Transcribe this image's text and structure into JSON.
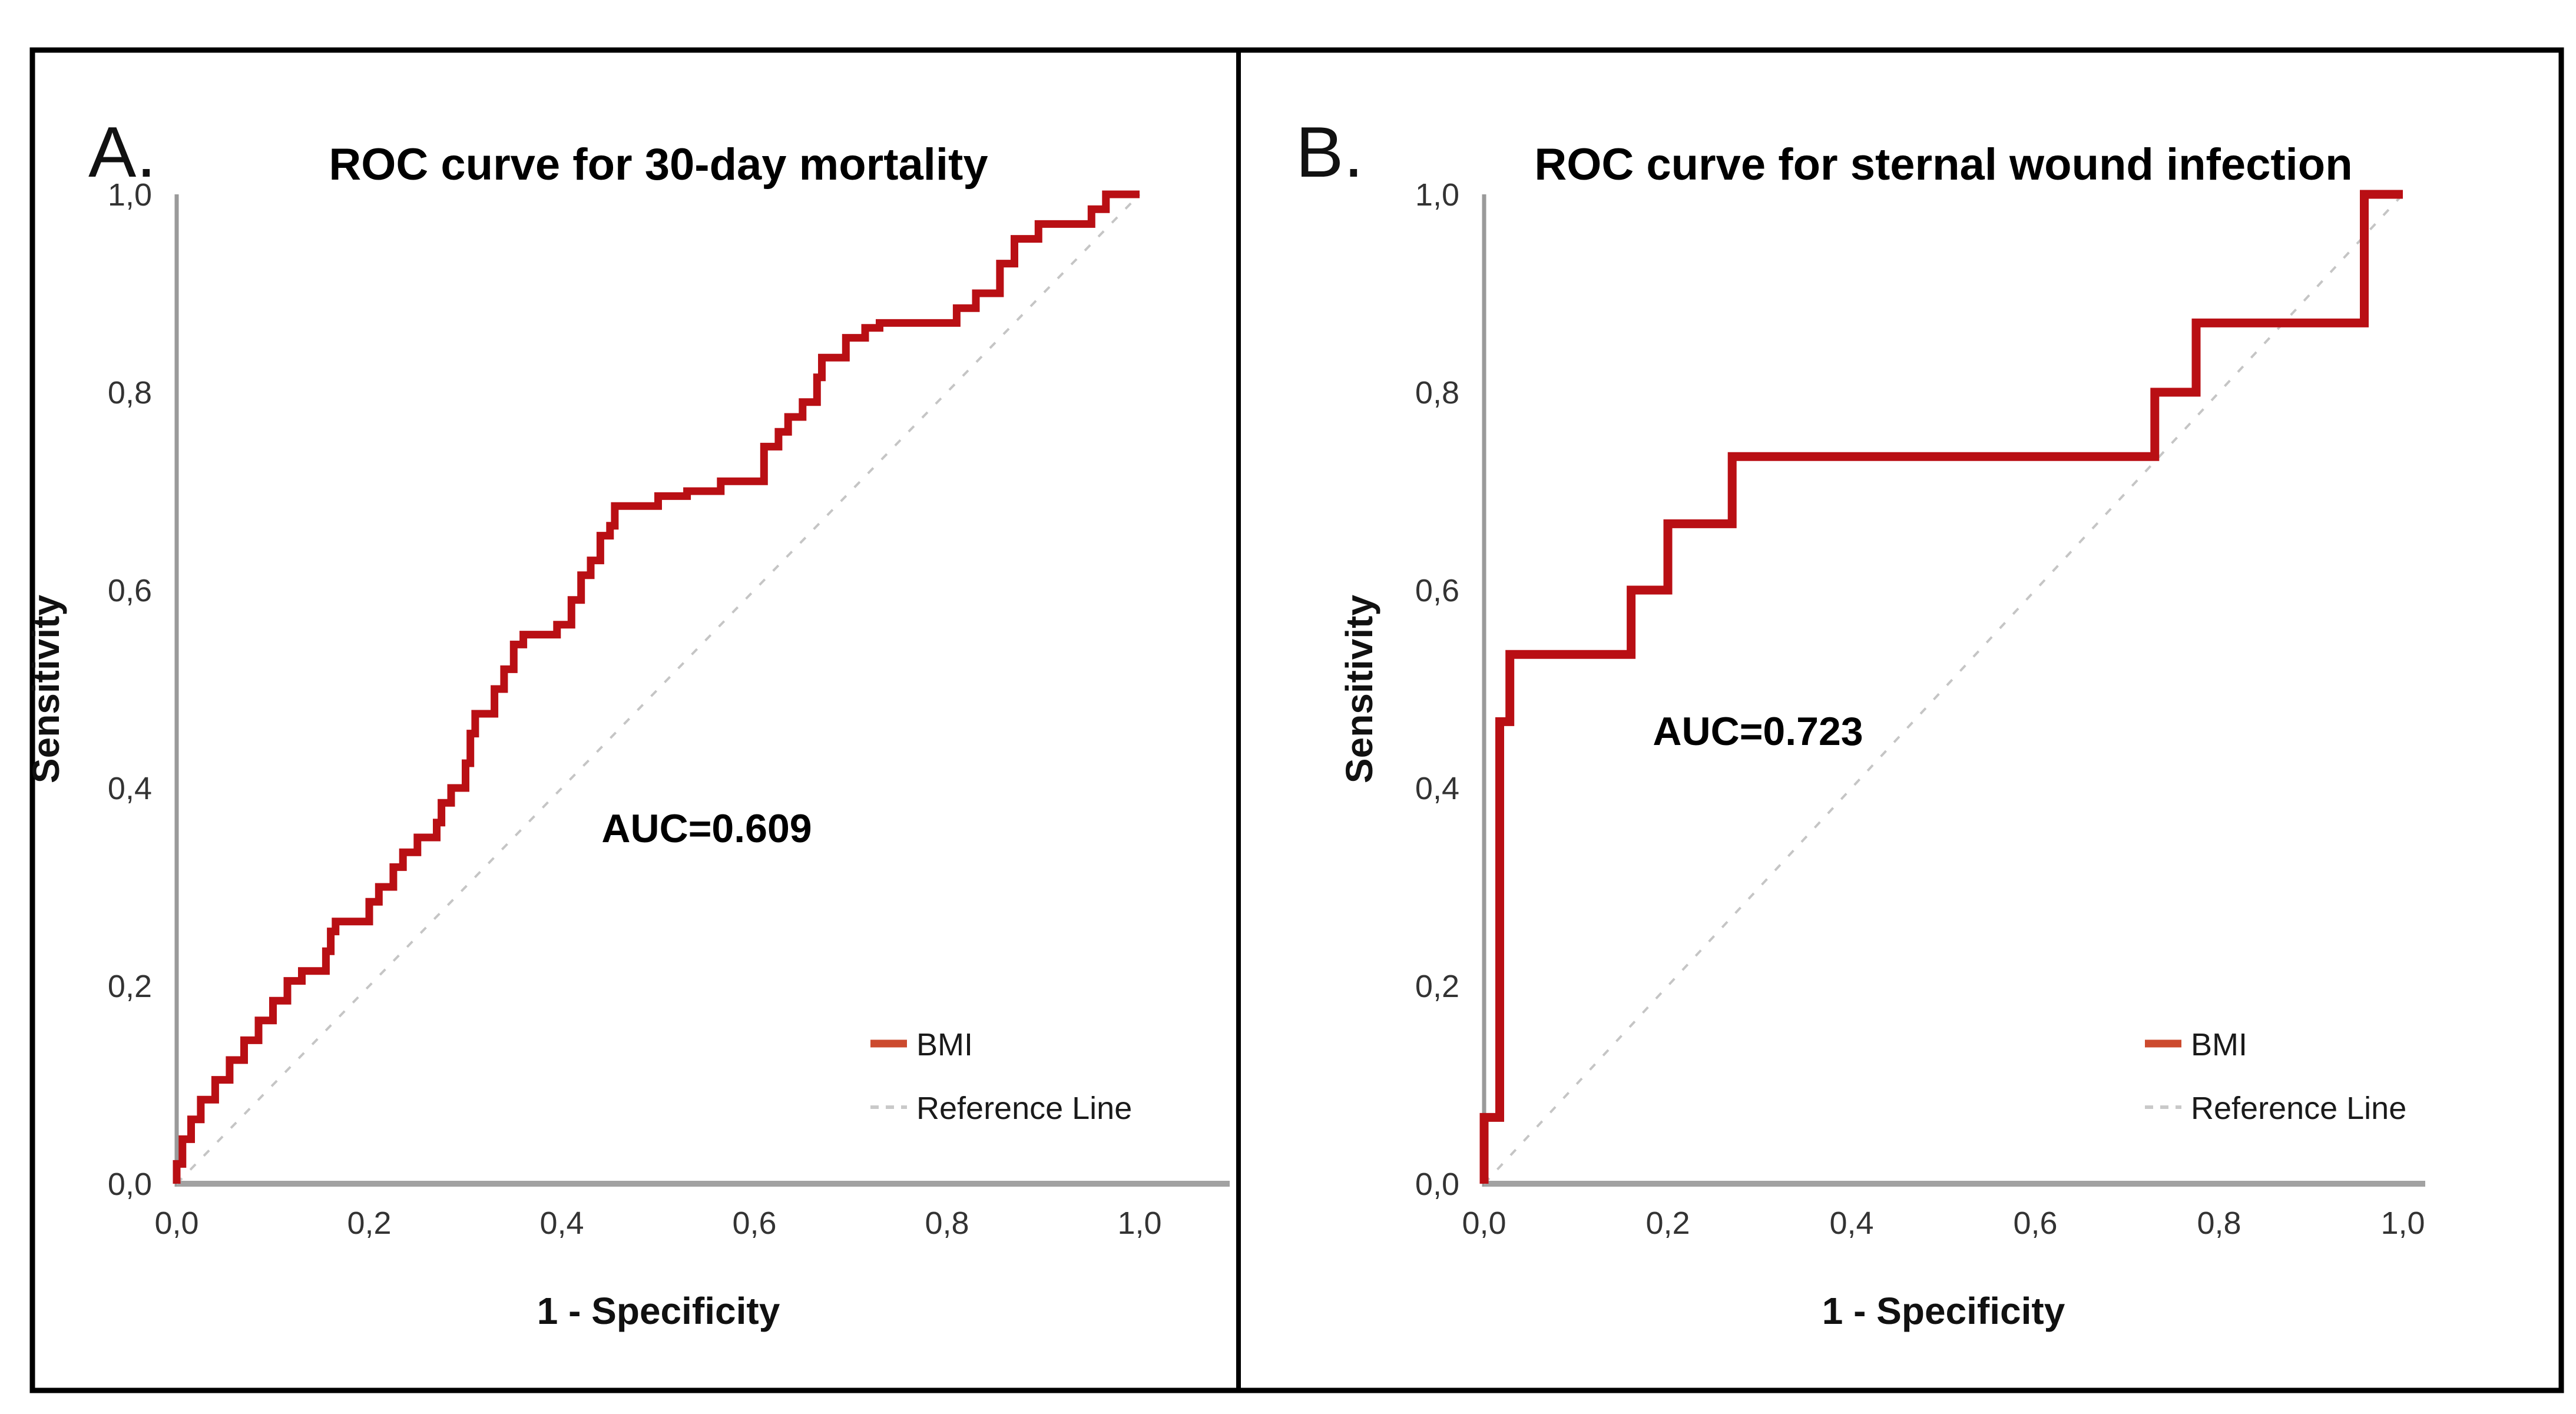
{
  "figure": {
    "kind": "two-panel ROC figure",
    "colors": {
      "curve": "#b90f14",
      "curve_halo": "#f2b8b5",
      "legend_marker_red": "#cc4a2e",
      "reference_line": "#c5c5c5",
      "x_axis": "#a2a2a2",
      "y_axis": "#9a9a9a",
      "border": "#000000",
      "tick_text": "#333333"
    },
    "panels": [
      {
        "panel_label": "A.",
        "title": "ROC curve for 30-day mortality",
        "x_axis_label": "1 - Specificity",
        "y_axis_label": "Sensitivity",
        "auc_label": "AUC=0.609",
        "x_tick_labels": [
          "0,0",
          "0,2",
          "0,4",
          "0,6",
          "0,8",
          "1,0"
        ],
        "y_tick_labels": [
          "0,0",
          "0,2",
          "0,4",
          "0,6",
          "0,8",
          "1,0"
        ],
        "legend": {
          "series_label": "BMI",
          "reference_label": "Reference Line"
        }
      },
      {
        "panel_label": "B.",
        "title": "ROC curve for sternal wound infection",
        "x_axis_label": "1 - Specificity",
        "y_axis_label": "Sensitivity",
        "auc_label": "AUC=0.723",
        "x_tick_labels": [
          "0,0",
          "0,2",
          "0,4",
          "0,6",
          "0,8",
          "1,0"
        ],
        "y_tick_labels": [
          "0,0",
          "0,2",
          "0,4",
          "0,6",
          "0,8",
          "1,0"
        ],
        "legend": {
          "series_label": "BMI",
          "reference_label": "Reference Line"
        }
      }
    ]
  },
  "chart_data": [
    {
      "type": "line",
      "subtype": "roc-step-curve",
      "title": "ROC curve for 30-day mortality",
      "xlabel": "1 - Specificity",
      "ylabel": "Sensitivity",
      "xlim": [
        0,
        1
      ],
      "ylim": [
        0,
        1
      ],
      "x_ticks": [
        0,
        0.2,
        0.4,
        0.6,
        0.8,
        1.0
      ],
      "y_ticks": [
        0,
        0.2,
        0.4,
        0.6,
        0.8,
        1.0
      ],
      "tick_label_format": "comma-decimal",
      "grid": false,
      "legend_position": "inside-lower-right",
      "annotation": "AUC=0.609",
      "auc": 0.609,
      "series": [
        {
          "name": "BMI",
          "style": "step",
          "color": "#b90f14",
          "points": [
            [
              0,
              0
            ],
            [
              0,
              0.02
            ],
            [
              0.006,
              0.02
            ],
            [
              0.006,
              0.045
            ],
            [
              0.015,
              0.045
            ],
            [
              0.015,
              0.065
            ],
            [
              0.025,
              0.065
            ],
            [
              0.025,
              0.085
            ],
            [
              0.04,
              0.085
            ],
            [
              0.04,
              0.105
            ],
            [
              0.055,
              0.105
            ],
            [
              0.055,
              0.125
            ],
            [
              0.07,
              0.125
            ],
            [
              0.07,
              0.145
            ],
            [
              0.085,
              0.145
            ],
            [
              0.085,
              0.165
            ],
            [
              0.1,
              0.165
            ],
            [
              0.1,
              0.185
            ],
            [
              0.115,
              0.185
            ],
            [
              0.115,
              0.205
            ],
            [
              0.13,
              0.205
            ],
            [
              0.13,
              0.215
            ],
            [
              0.155,
              0.215
            ],
            [
              0.155,
              0.235
            ],
            [
              0.16,
              0.235
            ],
            [
              0.16,
              0.255
            ],
            [
              0.165,
              0.255
            ],
            [
              0.165,
              0.265
            ],
            [
              0.2,
              0.265
            ],
            [
              0.2,
              0.285
            ],
            [
              0.21,
              0.285
            ],
            [
              0.21,
              0.3
            ],
            [
              0.225,
              0.3
            ],
            [
              0.225,
              0.32
            ],
            [
              0.235,
              0.32
            ],
            [
              0.235,
              0.335
            ],
            [
              0.25,
              0.335
            ],
            [
              0.25,
              0.35
            ],
            [
              0.27,
              0.35
            ],
            [
              0.27,
              0.365
            ],
            [
              0.275,
              0.365
            ],
            [
              0.275,
              0.385
            ],
            [
              0.285,
              0.385
            ],
            [
              0.285,
              0.4
            ],
            [
              0.3,
              0.4
            ],
            [
              0.3,
              0.425
            ],
            [
              0.305,
              0.425
            ],
            [
              0.305,
              0.455
            ],
            [
              0.31,
              0.455
            ],
            [
              0.31,
              0.475
            ],
            [
              0.33,
              0.475
            ],
            [
              0.33,
              0.5
            ],
            [
              0.34,
              0.5
            ],
            [
              0.34,
              0.52
            ],
            [
              0.35,
              0.52
            ],
            [
              0.35,
              0.545
            ],
            [
              0.36,
              0.545
            ],
            [
              0.36,
              0.555
            ],
            [
              0.395,
              0.555
            ],
            [
              0.395,
              0.565
            ],
            [
              0.41,
              0.565
            ],
            [
              0.41,
              0.59
            ],
            [
              0.42,
              0.59
            ],
            [
              0.42,
              0.615
            ],
            [
              0.43,
              0.615
            ],
            [
              0.43,
              0.63
            ],
            [
              0.44,
              0.63
            ],
            [
              0.44,
              0.655
            ],
            [
              0.45,
              0.655
            ],
            [
              0.45,
              0.665
            ],
            [
              0.455,
              0.665
            ],
            [
              0.455,
              0.685
            ],
            [
              0.5,
              0.685
            ],
            [
              0.5,
              0.695
            ],
            [
              0.53,
              0.695
            ],
            [
              0.53,
              0.7
            ],
            [
              0.565,
              0.7
            ],
            [
              0.565,
              0.71
            ],
            [
              0.61,
              0.71
            ],
            [
              0.61,
              0.745
            ],
            [
              0.625,
              0.745
            ],
            [
              0.625,
              0.76
            ],
            [
              0.635,
              0.76
            ],
            [
              0.635,
              0.775
            ],
            [
              0.65,
              0.775
            ],
            [
              0.65,
              0.79
            ],
            [
              0.665,
              0.79
            ],
            [
              0.665,
              0.815
            ],
            [
              0.67,
              0.815
            ],
            [
              0.67,
              0.835
            ],
            [
              0.695,
              0.835
            ],
            [
              0.695,
              0.855
            ],
            [
              0.715,
              0.855
            ],
            [
              0.715,
              0.865
            ],
            [
              0.73,
              0.865
            ],
            [
              0.73,
              0.87
            ],
            [
              0.81,
              0.87
            ],
            [
              0.81,
              0.885
            ],
            [
              0.83,
              0.885
            ],
            [
              0.83,
              0.9
            ],
            [
              0.855,
              0.9
            ],
            [
              0.855,
              0.93
            ],
            [
              0.87,
              0.93
            ],
            [
              0.87,
              0.955
            ],
            [
              0.895,
              0.955
            ],
            [
              0.895,
              0.97
            ],
            [
              0.95,
              0.97
            ],
            [
              0.95,
              0.985
            ],
            [
              0.965,
              0.985
            ],
            [
              0.965,
              1
            ],
            [
              1,
              1
            ]
          ]
        },
        {
          "name": "Reference Line",
          "style": "dashed",
          "color": "#c5c5c5",
          "points": [
            [
              0,
              0
            ],
            [
              1,
              1
            ]
          ]
        }
      ]
    },
    {
      "type": "line",
      "subtype": "roc-step-curve",
      "title": "ROC curve for sternal wound infection",
      "xlabel": "1 - Specificity",
      "ylabel": "Sensitivity",
      "xlim": [
        0,
        1
      ],
      "ylim": [
        0,
        1
      ],
      "x_ticks": [
        0,
        0.2,
        0.4,
        0.6,
        0.8,
        1.0
      ],
      "y_ticks": [
        0,
        0.2,
        0.4,
        0.6,
        0.8,
        1.0
      ],
      "tick_label_format": "comma-decimal",
      "grid": false,
      "legend_position": "inside-lower-right",
      "annotation": "AUC=0.723",
      "auc": 0.723,
      "series": [
        {
          "name": "BMI",
          "style": "step",
          "color": "#b90f14",
          "points": [
            [
              0,
              0
            ],
            [
              0,
              0.067
            ],
            [
              0.017,
              0.067
            ],
            [
              0.017,
              0.467
            ],
            [
              0.028,
              0.467
            ],
            [
              0.028,
              0.535
            ],
            [
              0.16,
              0.535
            ],
            [
              0.16,
              0.6
            ],
            [
              0.2,
              0.6
            ],
            [
              0.2,
              0.667
            ],
            [
              0.27,
              0.667
            ],
            [
              0.27,
              0.735
            ],
            [
              0.73,
              0.735
            ],
            [
              0.73,
              0.8
            ],
            [
              0.775,
              0.8
            ],
            [
              0.775,
              0.87
            ],
            [
              0.958,
              0.87
            ],
            [
              0.958,
              1
            ],
            [
              1,
              1
            ]
          ]
        },
        {
          "name": "Reference Line",
          "style": "dashed",
          "color": "#c5c5c5",
          "points": [
            [
              0,
              0
            ],
            [
              1,
              1
            ]
          ]
        }
      ]
    }
  ]
}
